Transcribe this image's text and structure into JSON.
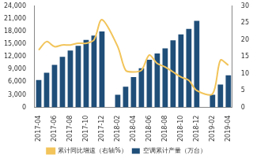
{
  "chart_data": {
    "type": "bar",
    "categories": [
      "2017-04",
      null,
      "2017-06",
      null,
      "2017-08",
      null,
      "2017-10",
      null,
      "2017-12",
      null,
      "2018-02",
      null,
      "2018-04",
      null,
      "2018-06",
      null,
      "2018-08",
      null,
      "2018-10",
      null,
      "2018-12",
      null,
      "2019-02",
      null,
      "2019-04"
    ],
    "series": [
      {
        "name": "空调累计产量（万台）",
        "type": "bar",
        "color": "#1f4e79",
        "values": [
          6500,
          8200,
          10100,
          12000,
          13500,
          14600,
          16000,
          17000,
          18000,
          null,
          3000,
          4900,
          7200,
          9300,
          11300,
          12800,
          14000,
          15900,
          17300,
          18600,
          20500,
          null,
          3000,
          5400,
          7600
        ]
      },
      {
        "name": "累计同比增速（右轴%）",
        "type": "line",
        "axis": "y2",
        "color": "#f2c45a",
        "values": [
          17,
          19.5,
          18,
          18.5,
          18.5,
          19,
          19,
          20,
          26,
          null,
          18,
          11,
          10.5,
          11,
          15.5,
          13,
          12,
          10.5,
          9,
          8,
          5,
          null,
          4,
          14,
          12.5
        ]
      }
    ],
    "ylim": [
      0,
      24000
    ],
    "yticks": [
      0,
      3000,
      6000,
      9000,
      12000,
      15000,
      18000,
      21000,
      24000
    ],
    "y2lim": [
      0,
      30
    ],
    "y2ticks": [
      0,
      5,
      10,
      15,
      20,
      25,
      30
    ],
    "legend": "bottom",
    "grid": false
  }
}
